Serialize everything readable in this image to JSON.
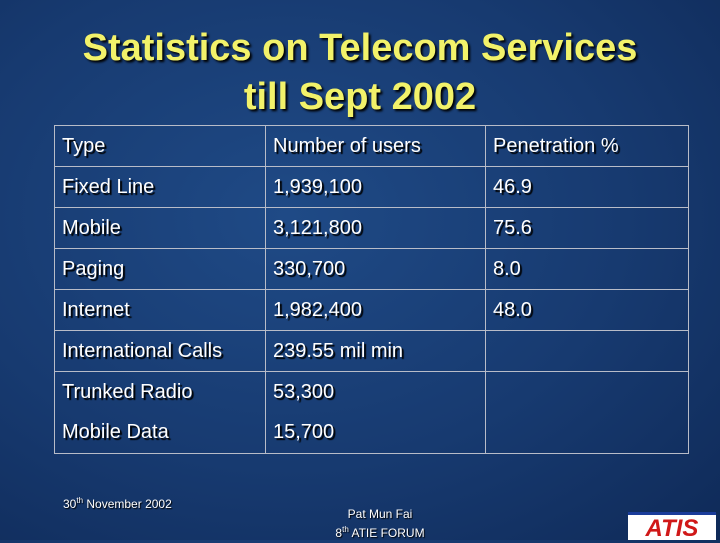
{
  "title": [
    "Statistics on Telecom Services",
    "till Sept 2002"
  ],
  "table": {
    "header": [
      "Type",
      "Number of users",
      "Penetration %"
    ],
    "rows": [
      [
        "Fixed Line",
        "1,939,100",
        "46.9"
      ],
      [
        "Mobile",
        "3,121,800",
        "75.6"
      ],
      [
        "Paging",
        "330,700",
        "8.0"
      ],
      [
        "Internet",
        "1,982,400",
        "48.0"
      ],
      [
        "International Calls",
        "239.55 mil min"
      ],
      [
        "Trunked Radio",
        "53,300"
      ],
      [
        "Mobile Data",
        "15,700"
      ]
    ]
  },
  "footer": {
    "date": {
      "day": "30",
      "suffix": "th",
      "rest": "November 2002"
    },
    "presenter": {
      "name": "Pat Mun Fai",
      "number": "8",
      "suffix": "th",
      "event": "ATIE FORUM"
    },
    "logo": "ATIS"
  }
}
